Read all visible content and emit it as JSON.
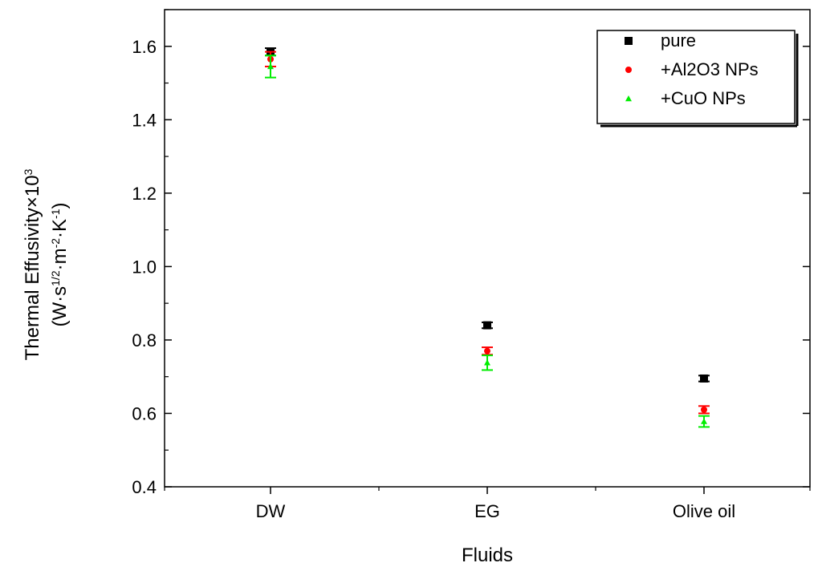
{
  "chart_data": {
    "type": "scatter",
    "categories": [
      "DW",
      "EG",
      "Olive oil"
    ],
    "xlabel": "Fluids",
    "ylabel_line1": "Thermal Effusivity×10",
    "ylabel_line1_sup": "3",
    "ylabel_line2": "(W·s",
    "ylabel_line2_sup1": "1/2",
    "ylabel_line2_mid1": "·m",
    "ylabel_line2_sup2": "-2",
    "ylabel_line2_mid2": "·K",
    "ylabel_line2_sup3": "-1",
    "ylabel_line2_end": ")",
    "ylim": [
      0.4,
      1.7
    ],
    "yticks": [
      0.4,
      0.6,
      0.8,
      1.0,
      1.2,
      1.4,
      1.6
    ],
    "ytick_labels": [
      "0.4",
      "0.6",
      "0.8",
      "1.0",
      "1.2",
      "1.4",
      "1.6"
    ],
    "grid": false,
    "legend_position": "top-right",
    "series": [
      {
        "name": "pure",
        "color": "#000000",
        "marker": "square",
        "values": [
          1.585,
          0.84,
          0.695
        ],
        "errors": [
          0.01,
          0.008,
          0.008
        ]
      },
      {
        "name": "+Al2O3 NPs",
        "color": "#ff0000",
        "marker": "circle",
        "values": [
          1.565,
          0.77,
          0.61
        ],
        "errors": [
          0.02,
          0.01,
          0.01
        ]
      },
      {
        "name": "+CuO NPs",
        "color": "#00ee00",
        "marker": "triangle",
        "values": [
          1.545,
          0.738,
          0.578
        ],
        "errors": [
          0.03,
          0.02,
          0.015
        ]
      }
    ]
  }
}
